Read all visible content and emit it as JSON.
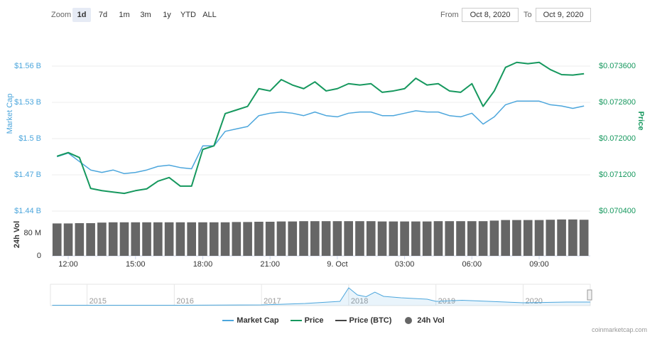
{
  "toolbar": {
    "zoom_label": "Zoom",
    "zoom_options": [
      "1d",
      "7d",
      "1m",
      "3m",
      "1y",
      "YTD",
      "ALL"
    ],
    "selected": 0,
    "from_label": "From",
    "from_date": "Oct 8, 2020",
    "to_label": "To",
    "to_date": "Oct 9, 2020"
  },
  "chart_data": [
    {
      "type": "line",
      "ylabel": "Market Cap",
      "y2label": "Price",
      "x": [
        11.5,
        12,
        12.5,
        13,
        13.5,
        14,
        14.5,
        15,
        15.5,
        16,
        16.5,
        17,
        17.5,
        18,
        18.5,
        19,
        19.5,
        20,
        20.5,
        21,
        21.5,
        22,
        22.5,
        23,
        23.5,
        24,
        24.5,
        25,
        25.5,
        26,
        26.5,
        27,
        27.5,
        28,
        28.5,
        29,
        29.5,
        30,
        30.5,
        31,
        31.5,
        32,
        32.5,
        33,
        33.5,
        34,
        34.5,
        35
      ],
      "xlim": [
        11.27,
        35.28
      ],
      "ylim": [
        1.44,
        1.5706
      ],
      "yticks": [
        {
          "value": 1.44,
          "label": "$1.44 B"
        },
        {
          "value": 1.47,
          "label": "$1.47 B"
        },
        {
          "value": 1.5,
          "label": "$1.5 B"
        },
        {
          "value": 1.53,
          "label": "$1.53 B"
        },
        {
          "value": 1.56,
          "label": "$1.56 B"
        }
      ],
      "y2lim": [
        0.0704,
        0.07388
      ],
      "y2ticks": [
        {
          "value": 0.0704,
          "label": "$0.070400"
        },
        {
          "value": 0.0712,
          "label": "$0.071200"
        },
        {
          "value": 0.072,
          "label": "$0.072000"
        },
        {
          "value": 0.0728,
          "label": "$0.072800"
        },
        {
          "value": 0.0736,
          "label": "$0.073600"
        }
      ],
      "grid": true,
      "series": [
        {
          "name": "Market Cap",
          "color": "#4ca6dc",
          "values": [
            1.485,
            1.488,
            1.481,
            1.474,
            1.472,
            1.474,
            1.471,
            1.472,
            1.474,
            1.477,
            1.478,
            1.476,
            1.475,
            1.494,
            1.494,
            1.506,
            1.508,
            1.51,
            1.519,
            1.521,
            1.522,
            1.521,
            1.519,
            1.522,
            1.519,
            1.518,
            1.521,
            1.522,
            1.522,
            1.519,
            1.519,
            1.521,
            1.523,
            1.522,
            1.522,
            1.519,
            1.518,
            1.521,
            1.512,
            1.518,
            1.528,
            1.531,
            1.531,
            1.531,
            1.528,
            1.527,
            1.525,
            1.527
          ]
        },
        {
          "name": "Price",
          "color": "#16985e",
          "axis": "y2",
          "values": [
            0.07161,
            0.07169,
            0.07158,
            0.0709,
            0.07085,
            0.07082,
            0.07079,
            0.07085,
            0.07089,
            0.07106,
            0.07114,
            0.07095,
            0.07095,
            0.07176,
            0.07184,
            0.07255,
            0.07263,
            0.07271,
            0.0731,
            0.07305,
            0.0733,
            0.07318,
            0.0731,
            0.07325,
            0.07305,
            0.0731,
            0.07321,
            0.07318,
            0.07321,
            0.07302,
            0.07305,
            0.0731,
            0.07333,
            0.07318,
            0.07321,
            0.07305,
            0.07302,
            0.07321,
            0.07271,
            0.07305,
            0.07357,
            0.07368,
            0.07365,
            0.07368,
            0.07352,
            0.07341,
            0.0734,
            0.07343
          ]
        }
      ],
      "hidden_series": [
        {
          "name": "Price (BTC)",
          "color": "#444444"
        }
      ]
    },
    {
      "type": "bar",
      "ylabel": "24h Vol",
      "x": [
        11.5,
        12,
        12.5,
        13,
        13.5,
        14,
        14.5,
        15,
        15.5,
        16,
        16.5,
        17,
        17.5,
        18,
        18.5,
        19,
        19.5,
        20,
        20.5,
        21,
        21.5,
        22,
        22.5,
        23,
        23.5,
        24,
        24.5,
        25,
        25.5,
        26,
        26.5,
        27,
        27.5,
        28,
        28.5,
        29,
        29.5,
        30,
        30.5,
        31,
        31.5,
        32,
        32.5,
        33,
        33.5,
        34,
        34.5,
        35
      ],
      "xlim": [
        11.27,
        35.28
      ],
      "xticks": [
        {
          "value": 12,
          "label": "12:00"
        },
        {
          "value": 15,
          "label": "15:00"
        },
        {
          "value": 18,
          "label": "18:00"
        },
        {
          "value": 21,
          "label": "21:00"
        },
        {
          "value": 24,
          "label": "9. Oct"
        },
        {
          "value": 27,
          "label": "03:00"
        },
        {
          "value": 30,
          "label": "06:00"
        },
        {
          "value": 33,
          "label": "09:00"
        }
      ],
      "ylim": [
        0,
        150
      ],
      "yticks": [
        0,
        {
          "value": 80,
          "label": "80 M"
        }
      ],
      "series": [
        {
          "name": "24h Vol",
          "color": "#666666",
          "values": [
            114,
            114,
            115,
            115,
            117,
            118,
            118,
            118,
            118,
            118,
            118,
            118,
            118,
            118,
            118,
            118,
            119,
            119,
            120,
            120,
            121,
            121,
            122,
            122,
            122,
            122,
            122,
            122,
            122,
            121,
            121,
            121,
            121,
            121,
            122,
            122,
            122,
            122,
            122,
            124,
            126,
            126,
            126,
            126,
            127,
            128,
            128,
            127
          ]
        }
      ]
    },
    {
      "type": "area",
      "x": [
        2014.6,
        2015,
        2016,
        2017,
        2017.5,
        2017.9,
        2018,
        2018.1,
        2018.2,
        2018.3,
        2018.4,
        2018.6,
        2018.9,
        2019,
        2019.3,
        2019.6,
        2020,
        2020.5,
        2020.77
      ],
      "values": [
        0.1,
        0.1,
        0.1,
        0.2,
        0.6,
        1.2,
        5,
        3,
        2.5,
        3.8,
        2.6,
        2.2,
        1.8,
        1.2,
        1.5,
        1.2,
        0.8,
        1,
        1
      ],
      "color": "#4ca6dc",
      "xlim": [
        2014.58,
        2020.77
      ],
      "xticks": [
        2015,
        2016,
        2017,
        2018,
        2019,
        2020
      ],
      "ylim": [
        0,
        6
      ]
    }
  ],
  "watermark": "coinmarketcap.com"
}
